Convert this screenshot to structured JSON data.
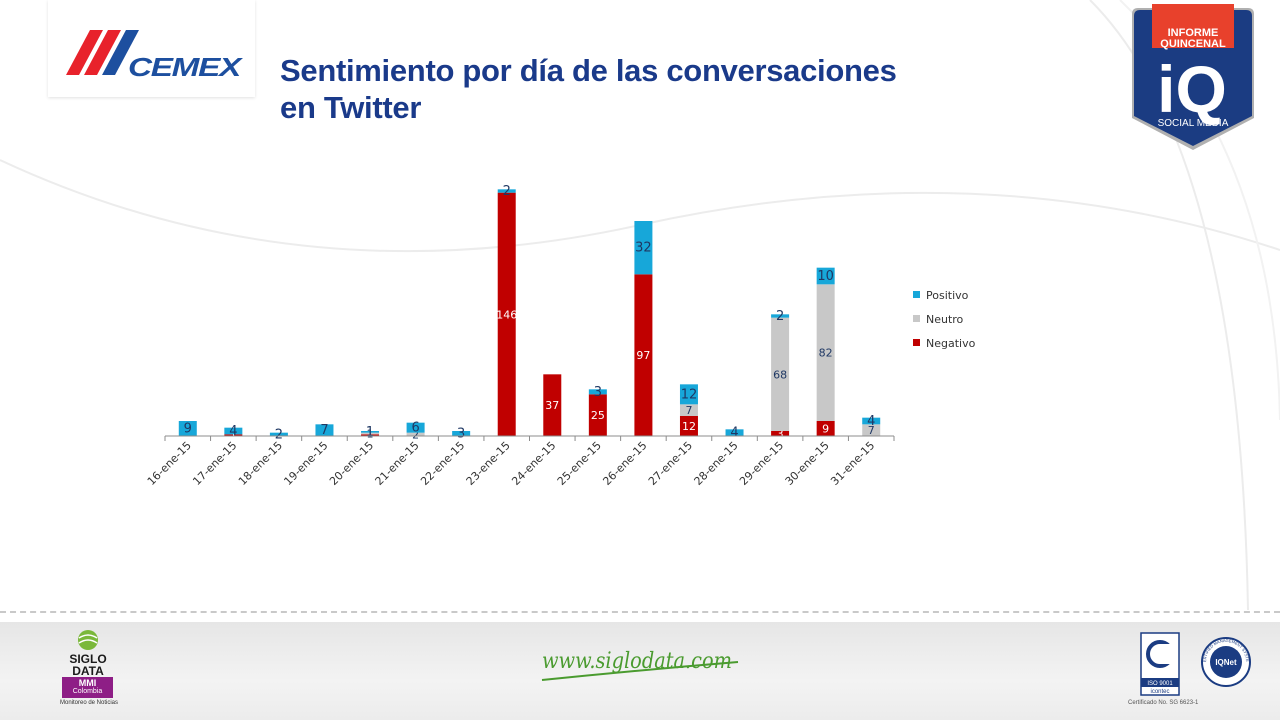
{
  "header": {
    "brand": "CEMEX",
    "title_line1": "Sentimiento por día de las conversaciones",
    "title_line2": "en Twitter"
  },
  "badge": {
    "top_line1": "INFORME",
    "top_line2": "QUINCENAL",
    "mark": "iQ",
    "bottom": "SOCIAL MEDIA"
  },
  "colors": {
    "positivo": "#17a7d9",
    "neutro": "#c8c8c8",
    "negativo": "#c00000",
    "title": "#1a3a8a",
    "badge_navy": "#1b3c82",
    "badge_red": "#e8412c"
  },
  "chart_data": {
    "type": "bar",
    "stacked": true,
    "categories": [
      "16-ene-15",
      "17-ene-15",
      "18-ene-15",
      "19-ene-15",
      "20-ene-15",
      "21-ene-15",
      "22-ene-15",
      "23-ene-15",
      "24-ene-15",
      "25-ene-15",
      "26-ene-15",
      "27-ene-15",
      "28-ene-15",
      "29-ene-15",
      "30-ene-15",
      "31-ene-15"
    ],
    "series": [
      {
        "name": "Negativo",
        "values": [
          0,
          1,
          0,
          0,
          1,
          0,
          0,
          146,
          37,
          25,
          97,
          12,
          0,
          3,
          9,
          0
        ]
      },
      {
        "name": "Neutro",
        "values": [
          0,
          0,
          0,
          0,
          1,
          2,
          0,
          0,
          0,
          0,
          0,
          7,
          0,
          68,
          82,
          7
        ]
      },
      {
        "name": "Positivo",
        "values": [
          9,
          4,
          2,
          7,
          1,
          6,
          3,
          2,
          0,
          3,
          32,
          12,
          4,
          2,
          10,
          4
        ]
      }
    ],
    "ylim": [
      0,
      150
    ],
    "legend_position": "right",
    "grid": false
  },
  "footer": {
    "siglo_line1": "SIGLO",
    "siglo_line2": "DATA",
    "mmi": "MMI",
    "mmi_country": "Colombia",
    "siglo_sub": "Monitoreo de Noticias",
    "website": "www.siglodata.com",
    "iso": "ISO 9001",
    "icontec": "icontec",
    "iqnet_label": "IQNet",
    "iqnet_ring": "CERTIFIED MANAGEMENT SYSTEM",
    "cert_text": "Certificado No. SG 6623-1"
  }
}
